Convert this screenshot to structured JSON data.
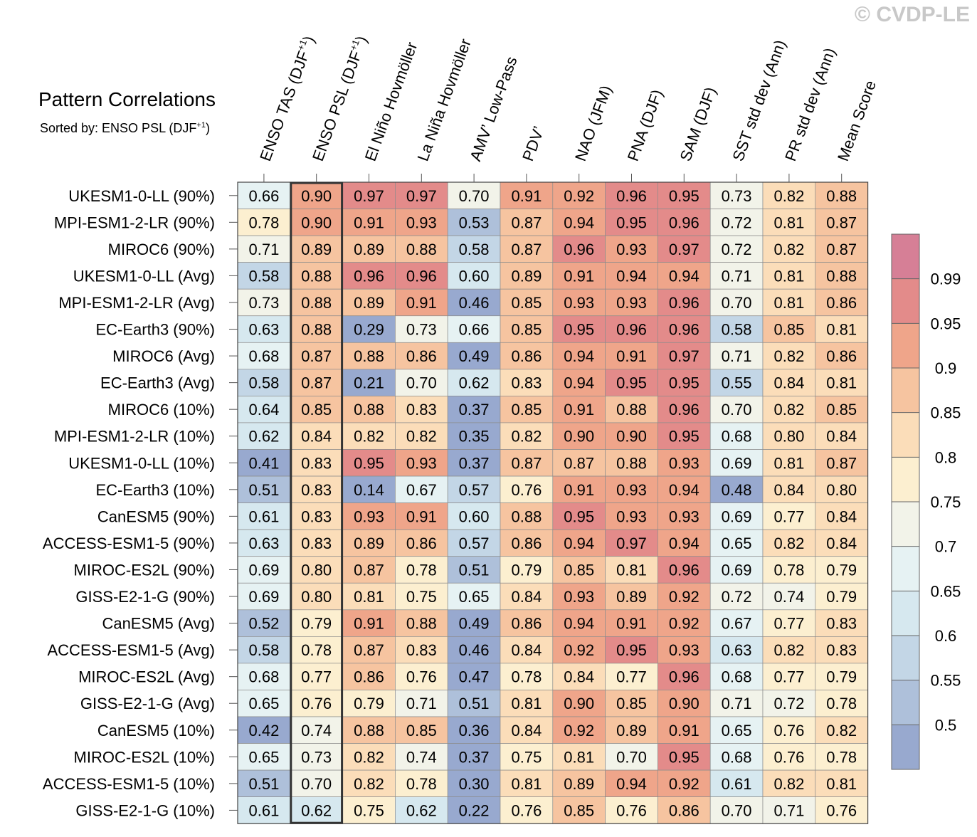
{
  "watermark": "© CVDP-LE",
  "title": "Pattern Correlations",
  "subtitle": {
    "prefix": "Sorted by: ENSO PSL (DJF",
    "sup": "+1",
    "suffix": ")"
  },
  "chart_data": {
    "type": "heatmap",
    "columns": [
      {
        "label": "ENSO TAS (DJF",
        "sup": "+1",
        "suffix": ")"
      },
      {
        "label": "ENSO PSL (DJF",
        "sup": "+1",
        "suffix": ")"
      },
      {
        "label": "El Niño Hovmöller"
      },
      {
        "label": "La Niña Hovmöller"
      },
      {
        "label": "AMV’ Low-Pass"
      },
      {
        "label": "PDV’"
      },
      {
        "label": "NAO (JFM)"
      },
      {
        "label": "PNA (DJF)"
      },
      {
        "label": "SAM (DJF)"
      },
      {
        "label": "SST std dev (Ann)"
      },
      {
        "label": "PR std dev (Ann)"
      },
      {
        "label": "Mean Score"
      }
    ],
    "highlighted_column": 1,
    "rows": [
      {
        "model": "UKESM1-0-LL (90%)",
        "values": [
          0.66,
          0.9,
          0.97,
          0.97,
          0.7,
          0.91,
          0.92,
          0.96,
          0.95,
          0.73,
          0.82,
          0.88
        ]
      },
      {
        "model": "MPI-ESM1-2-LR (90%)",
        "values": [
          0.78,
          0.9,
          0.91,
          0.93,
          0.53,
          0.87,
          0.94,
          0.95,
          0.96,
          0.72,
          0.81,
          0.87
        ]
      },
      {
        "model": "MIROC6 (90%)",
        "values": [
          0.71,
          0.89,
          0.89,
          0.88,
          0.58,
          0.87,
          0.96,
          0.93,
          0.97,
          0.72,
          0.82,
          0.87
        ]
      },
      {
        "model": "UKESM1-0-LL (Avg)",
        "values": [
          0.58,
          0.88,
          0.96,
          0.96,
          0.6,
          0.89,
          0.91,
          0.94,
          0.94,
          0.71,
          0.81,
          0.88
        ]
      },
      {
        "model": "MPI-ESM1-2-LR (Avg)",
        "values": [
          0.73,
          0.88,
          0.89,
          0.91,
          0.46,
          0.85,
          0.93,
          0.93,
          0.96,
          0.7,
          0.81,
          0.86
        ]
      },
      {
        "model": "EC-Earth3 (90%)",
        "values": [
          0.63,
          0.88,
          0.29,
          0.73,
          0.66,
          0.85,
          0.95,
          0.96,
          0.96,
          0.58,
          0.85,
          0.81
        ]
      },
      {
        "model": "MIROC6 (Avg)",
        "values": [
          0.68,
          0.87,
          0.88,
          0.86,
          0.49,
          0.86,
          0.94,
          0.91,
          0.97,
          0.71,
          0.82,
          0.86
        ]
      },
      {
        "model": "EC-Earth3 (Avg)",
        "values": [
          0.58,
          0.87,
          0.21,
          0.7,
          0.62,
          0.83,
          0.94,
          0.95,
          0.95,
          0.55,
          0.84,
          0.81
        ]
      },
      {
        "model": "MIROC6 (10%)",
        "values": [
          0.64,
          0.85,
          0.88,
          0.83,
          0.37,
          0.85,
          0.91,
          0.88,
          0.96,
          0.7,
          0.82,
          0.85
        ]
      },
      {
        "model": "MPI-ESM1-2-LR (10%)",
        "values": [
          0.62,
          0.84,
          0.82,
          0.82,
          0.35,
          0.82,
          0.9,
          0.9,
          0.95,
          0.68,
          0.8,
          0.84
        ]
      },
      {
        "model": "UKESM1-0-LL (10%)",
        "values": [
          0.41,
          0.83,
          0.95,
          0.93,
          0.37,
          0.87,
          0.87,
          0.88,
          0.93,
          0.69,
          0.81,
          0.87
        ]
      },
      {
        "model": "EC-Earth3 (10%)",
        "values": [
          0.51,
          0.83,
          0.14,
          0.67,
          0.57,
          0.76,
          0.91,
          0.93,
          0.94,
          0.48,
          0.84,
          0.8
        ]
      },
      {
        "model": "CanESM5 (90%)",
        "values": [
          0.61,
          0.83,
          0.93,
          0.91,
          0.6,
          0.88,
          0.95,
          0.93,
          0.93,
          0.69,
          0.77,
          0.84
        ]
      },
      {
        "model": "ACCESS-ESM1-5 (90%)",
        "values": [
          0.63,
          0.83,
          0.89,
          0.86,
          0.57,
          0.86,
          0.94,
          0.97,
          0.94,
          0.65,
          0.82,
          0.84
        ]
      },
      {
        "model": "MIROC-ES2L (90%)",
        "values": [
          0.69,
          0.8,
          0.87,
          0.78,
          0.51,
          0.79,
          0.85,
          0.81,
          0.96,
          0.69,
          0.78,
          0.79
        ]
      },
      {
        "model": "GISS-E2-1-G (90%)",
        "values": [
          0.69,
          0.8,
          0.81,
          0.75,
          0.65,
          0.84,
          0.93,
          0.89,
          0.92,
          0.72,
          0.74,
          0.79
        ]
      },
      {
        "model": "CanESM5 (Avg)",
        "values": [
          0.52,
          0.79,
          0.91,
          0.88,
          0.49,
          0.86,
          0.94,
          0.91,
          0.92,
          0.67,
          0.77,
          0.83
        ]
      },
      {
        "model": "ACCESS-ESM1-5 (Avg)",
        "values": [
          0.58,
          0.78,
          0.87,
          0.83,
          0.46,
          0.84,
          0.92,
          0.95,
          0.93,
          0.63,
          0.82,
          0.83
        ]
      },
      {
        "model": "MIROC-ES2L (Avg)",
        "values": [
          0.68,
          0.77,
          0.86,
          0.76,
          0.47,
          0.78,
          0.84,
          0.77,
          0.96,
          0.68,
          0.77,
          0.79
        ]
      },
      {
        "model": "GISS-E2-1-G (Avg)",
        "values": [
          0.65,
          0.76,
          0.79,
          0.71,
          0.51,
          0.81,
          0.9,
          0.85,
          0.9,
          0.71,
          0.72,
          0.78
        ]
      },
      {
        "model": "CanESM5 (10%)",
        "values": [
          0.42,
          0.74,
          0.88,
          0.85,
          0.36,
          0.84,
          0.92,
          0.89,
          0.91,
          0.65,
          0.76,
          0.82
        ]
      },
      {
        "model": "MIROC-ES2L (10%)",
        "values": [
          0.65,
          0.73,
          0.82,
          0.74,
          0.37,
          0.75,
          0.81,
          0.7,
          0.95,
          0.68,
          0.76,
          0.78
        ]
      },
      {
        "model": "ACCESS-ESM1-5 (10%)",
        "values": [
          0.51,
          0.7,
          0.82,
          0.78,
          0.3,
          0.81,
          0.89,
          0.94,
          0.92,
          0.61,
          0.82,
          0.81
        ]
      },
      {
        "model": "GISS-E2-1-G (10%)",
        "values": [
          0.61,
          0.62,
          0.75,
          0.62,
          0.22,
          0.76,
          0.85,
          0.76,
          0.86,
          0.7,
          0.71,
          0.76
        ]
      }
    ],
    "colorbar": {
      "levels": [
        0.5,
        0.55,
        0.6,
        0.65,
        0.7,
        0.75,
        0.8,
        0.85,
        0.9,
        0.95,
        0.99
      ],
      "labels": [
        "0.5",
        "0.55",
        "0.6",
        "0.65",
        "0.7",
        "0.75",
        "0.8",
        "0.85",
        "0.9",
        "0.95",
        "0.99"
      ],
      "colors": [
        "#98a9cf",
        "#aec0da",
        "#c3d6e6",
        "#d6e8ef",
        "#e6f2f3",
        "#f2f3e9",
        "#fcefd0",
        "#fbddb9",
        "#f6c4a0",
        "#efa58a",
        "#e38b8a",
        "#d67f96"
      ]
    }
  }
}
